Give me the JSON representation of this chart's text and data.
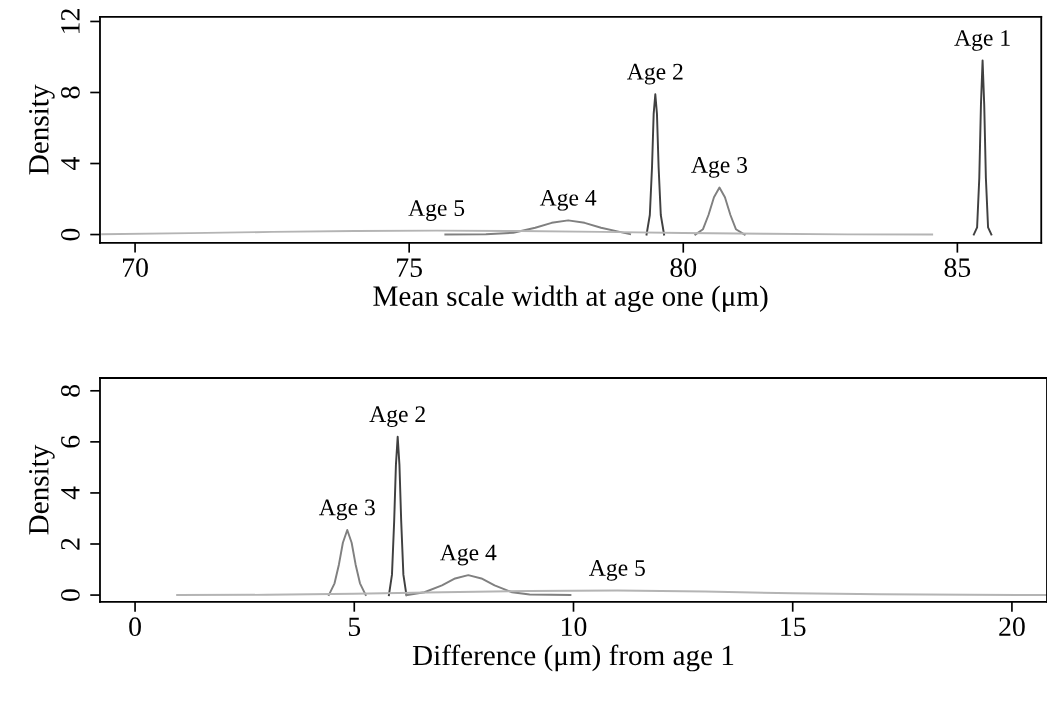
{
  "chart_data": [
    {
      "type": "line",
      "xlabel": "Mean scale width at age one (μm)",
      "ylabel": "Density",
      "xlim": [
        69.36,
        86.53
      ],
      "ylim": [
        -0.47,
        12.26
      ],
      "xticks": [
        70,
        75,
        80,
        85
      ],
      "yticks": [
        0,
        4,
        8,
        12
      ],
      "grid": false,
      "legend": false,
      "marker": "none",
      "line_style": "solid",
      "series": [
        {
          "name": "Age 1",
          "color": "#404040",
          "x": [
            85.3,
            85.36,
            85.4,
            85.43,
            85.46,
            85.49,
            85.52,
            85.56,
            85.62
          ],
          "values": [
            0,
            0.4,
            3.2,
            7.3,
            9.8,
            7.3,
            3.2,
            0.4,
            0
          ]
        },
        {
          "name": "Age 2",
          "color": "#404040",
          "x": [
            79.33,
            79.39,
            79.43,
            79.46,
            79.49,
            79.52,
            79.55,
            79.59,
            79.65
          ],
          "values": [
            0,
            1.1,
            3.8,
            6.8,
            7.9,
            6.8,
            3.8,
            1.1,
            0
          ]
        },
        {
          "name": "Age 3",
          "color": "#808080",
          "x": [
            80.22,
            80.36,
            80.46,
            80.56,
            80.66,
            80.76,
            80.86,
            80.96,
            81.12
          ],
          "values": [
            0,
            0.3,
            1.1,
            2.1,
            2.65,
            2.1,
            1.1,
            0.3,
            0
          ]
        },
        {
          "name": "Age 4",
          "color": "#808080",
          "x": [
            75.66,
            76.4,
            76.9,
            77.3,
            77.6,
            77.9,
            78.2,
            78.5,
            78.9,
            79.03
          ],
          "values": [
            0,
            0.02,
            0.1,
            0.38,
            0.66,
            0.8,
            0.66,
            0.38,
            0.11,
            0.02
          ]
        },
        {
          "name": "Age 5",
          "color": "#b4b4b4",
          "x": [
            69.4,
            71,
            72.5,
            74,
            75.5,
            77,
            78.5,
            80,
            81.5,
            83,
            84.54
          ],
          "values": [
            0.02,
            0.08,
            0.15,
            0.2,
            0.22,
            0.2,
            0.15,
            0.09,
            0.04,
            0.01,
            0
          ]
        }
      ]
    },
    {
      "type": "line",
      "xlabel": "Difference (μm) from age 1",
      "ylabel": "Density",
      "xlim": [
        -0.8,
        20.8
      ],
      "ylim": [
        -0.27,
        8.5
      ],
      "xticks": [
        0,
        5,
        10,
        15,
        20
      ],
      "yticks": [
        0,
        2,
        4,
        6,
        8
      ],
      "grid": false,
      "legend": false,
      "marker": "none",
      "line_style": "solid",
      "series": [
        {
          "name": "Age 2",
          "color": "#404040",
          "x": [
            5.79,
            5.86,
            5.91,
            5.95,
            5.99,
            6.03,
            6.07,
            6.12,
            6.19
          ],
          "values": [
            0,
            0.8,
            2.9,
            5.1,
            6.2,
            5.1,
            2.9,
            0.8,
            0
          ]
        },
        {
          "name": "Age 3",
          "color": "#808080",
          "x": [
            4.42,
            4.55,
            4.65,
            4.74,
            4.84,
            4.94,
            5.03,
            5.13,
            5.26
          ],
          "values": [
            0,
            0.46,
            1.2,
            2.05,
            2.55,
            2.05,
            1.2,
            0.46,
            0
          ]
        },
        {
          "name": "Age 4",
          "color": "#808080",
          "x": [
            6.2,
            6.6,
            7.0,
            7.3,
            7.6,
            7.9,
            8.2,
            8.6,
            9.0,
            9.93
          ],
          "values": [
            0,
            0.11,
            0.38,
            0.65,
            0.78,
            0.65,
            0.38,
            0.11,
            0.02,
            0
          ]
        },
        {
          "name": "Age 5",
          "color": "#b4b4b4",
          "x": [
            0.96,
            3,
            5,
            7,
            9,
            11,
            13,
            15,
            17,
            19,
            20.8
          ],
          "values": [
            0,
            0.01,
            0.05,
            0.11,
            0.16,
            0.18,
            0.14,
            0.07,
            0.03,
            0.01,
            0
          ]
        }
      ]
    }
  ]
}
